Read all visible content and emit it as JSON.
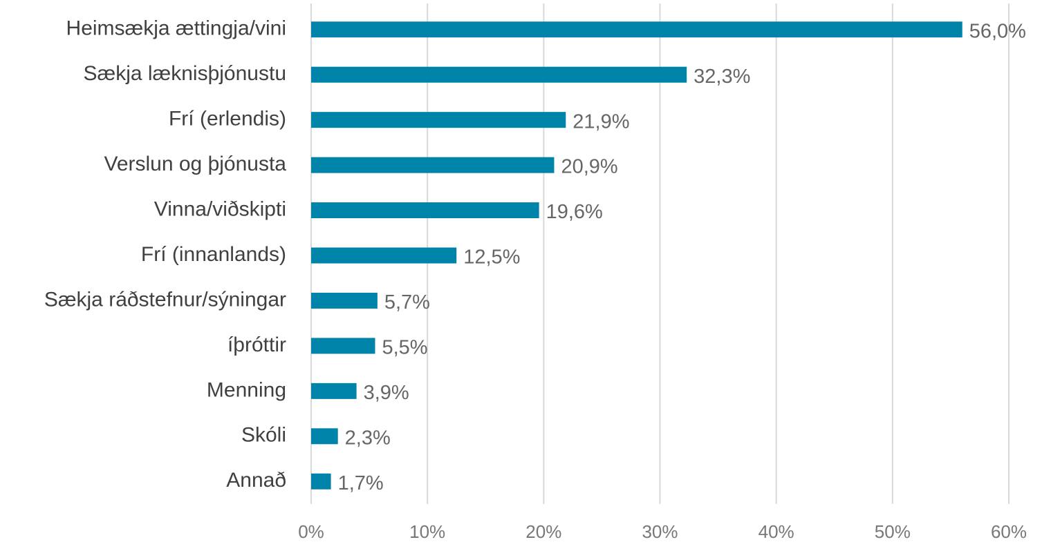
{
  "chart_data": {
    "type": "bar",
    "orientation": "horizontal",
    "categories": [
      "Heimsækja ættingja/vini",
      "Sækja læknisþjónustu",
      "Frí (erlendis)",
      "Verslun og þjónusta",
      "Vinna/viðskipti",
      "Frí (innanlands)",
      "Sækja ráðstefnur/sýningar",
      "íþróttir",
      "Menning",
      "Skóli",
      "Annað"
    ],
    "values": [
      56.0,
      32.3,
      21.9,
      20.9,
      19.6,
      12.5,
      5.7,
      5.5,
      3.9,
      2.3,
      1.7
    ],
    "value_labels": [
      "56,0%",
      "32,3%",
      "21,9%",
      "20,9%",
      "19,6%",
      "12,5%",
      "5,7%",
      "5,5%",
      "3,9%",
      "2,3%",
      "1,7%"
    ],
    "color": "#0083a9",
    "xlim": [
      0,
      60
    ],
    "xticks": [
      {
        "value": 0,
        "label": "0%"
      },
      {
        "value": 10,
        "label": "10%"
      },
      {
        "value": 20,
        "label": "20%"
      },
      {
        "value": 30,
        "label": "30%"
      },
      {
        "value": 40,
        "label": "40%"
      },
      {
        "value": 50,
        "label": "50%"
      },
      {
        "value": 60,
        "label": "60%"
      }
    ],
    "grid": true
  }
}
